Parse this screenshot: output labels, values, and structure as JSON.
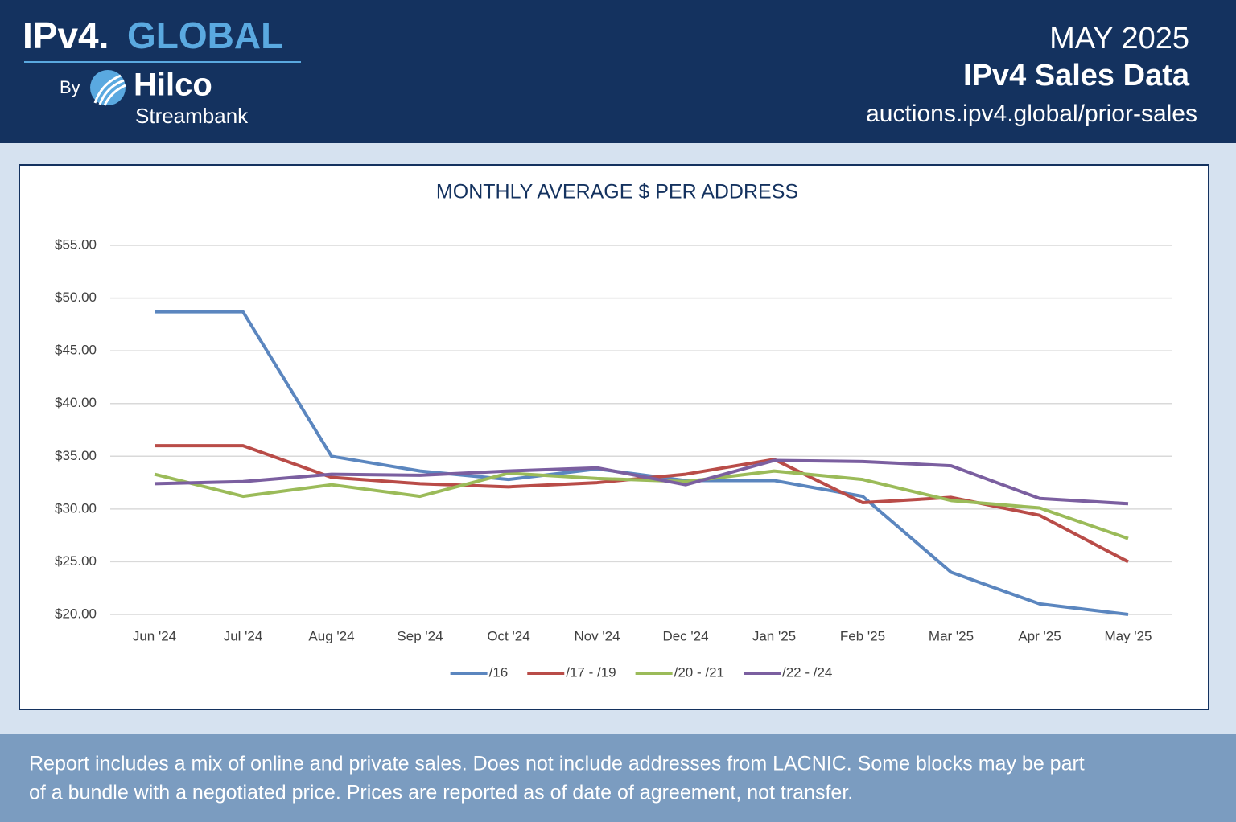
{
  "header": {
    "logo_ipv4": "IPv4.",
    "logo_global": "GLOBAL",
    "logo_by": "By",
    "logo_hilco": "Hilco",
    "logo_streambank": "Streambank",
    "month": "MAY 2025",
    "title": "IPv4 Sales Data",
    "url": "auctions.ipv4.global/prior-sales"
  },
  "chart_data": {
    "type": "line",
    "title": "MONTHLY AVERAGE $ PER ADDRESS",
    "categories": [
      "Jun '24",
      "Jul '24",
      "Aug '24",
      "Sep '24",
      "Oct '24",
      "Nov '24",
      "Dec '24",
      "Jan '25",
      "Feb '25",
      "Mar '25",
      "Apr '25",
      "May '25"
    ],
    "series": [
      {
        "name": "/16",
        "color": "#5b86bf",
        "values": [
          48.7,
          48.7,
          35.0,
          33.6,
          32.8,
          33.8,
          32.7,
          32.7,
          31.2,
          24.0,
          21.0,
          20.0
        ]
      },
      {
        "name": "/17 - /19",
        "color": "#b94c48",
        "values": [
          36.0,
          36.0,
          33.0,
          32.4,
          32.1,
          32.5,
          33.3,
          34.7,
          30.6,
          31.1,
          29.4,
          25.0
        ]
      },
      {
        "name": "/20 - /21",
        "color": "#9bbb59",
        "values": [
          33.3,
          31.2,
          32.3,
          31.2,
          33.4,
          32.9,
          32.6,
          33.6,
          32.8,
          30.8,
          30.1,
          27.2
        ]
      },
      {
        "name": "/22 - /24",
        "color": "#7b5fa0",
        "values": [
          32.4,
          32.6,
          33.3,
          33.2,
          33.6,
          33.9,
          32.3,
          34.6,
          34.5,
          34.1,
          31.0,
          30.5
        ]
      }
    ],
    "ylim": [
      20,
      55
    ],
    "yticks": [
      {
        "value": 20,
        "label": "$20.00"
      },
      {
        "value": 25,
        "label": "$25.00"
      },
      {
        "value": 30,
        "label": "$30.00"
      },
      {
        "value": 35,
        "label": "$35.00"
      },
      {
        "value": 40,
        "label": "$40.00"
      },
      {
        "value": 45,
        "label": "$45.00"
      },
      {
        "value": 50,
        "label": "$50.00"
      },
      {
        "value": 55,
        "label": "$55.00"
      }
    ],
    "grid": true,
    "legend": "bottom"
  },
  "footer": {
    "line1": "Report includes a mix of online and private sales. Does not include addresses from LACNIC. Some blocks may be part",
    "line2": "of a bundle with a negotiated price. Prices are reported as of date of agreement, not transfer."
  }
}
